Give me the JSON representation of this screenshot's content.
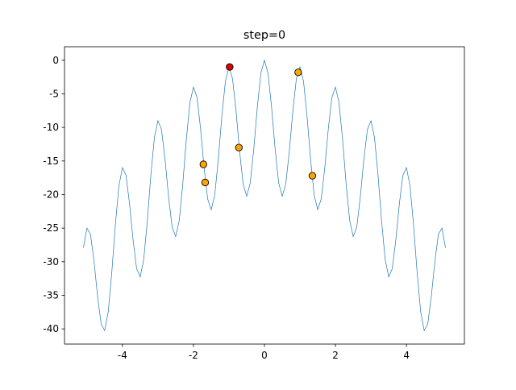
{
  "chart_data": {
    "type": "line",
    "title": "step=0",
    "xlim": [
      -5.632,
      5.632
    ],
    "ylim": [
      -42.26,
      2.01
    ],
    "xticks": [
      -4,
      -2,
      0,
      2,
      4
    ],
    "yticks": [
      0,
      -5,
      -10,
      -15,
      -20,
      -25,
      -30,
      -35,
      -40
    ],
    "series": [
      {
        "type": "line",
        "color": "#1f77b4",
        "x": [
          -5.1,
          -5,
          -4.9,
          -4.8,
          -4.7,
          -4.6,
          -4.5,
          -4.4,
          -4.3,
          -4.2,
          -4.1,
          -4,
          -3.9,
          -3.8,
          -3.7,
          -3.6,
          -3.5,
          -3.4,
          -3.3,
          -3.2,
          -3.1,
          -3,
          -2.9,
          -2.8,
          -2.7,
          -2.6,
          -2.5,
          -2.4,
          -2.3,
          -2.2,
          -2.1,
          -2,
          -1.9,
          -1.8,
          -1.7,
          -1.6,
          -1.5,
          -1.4,
          -1.3,
          -1.2,
          -1.1,
          -1,
          -0.9,
          -0.8,
          -0.7,
          -0.6,
          -0.5,
          -0.4,
          -0.3,
          -0.2,
          -0.1,
          0,
          0.1,
          0.2,
          0.3,
          0.4,
          0.5,
          0.6,
          0.7,
          0.8,
          0.9,
          1,
          1.1,
          1.2,
          1.3,
          1.4,
          1.5,
          1.6,
          1.7,
          1.8,
          1.9,
          2,
          2.1,
          2.2,
          2.3,
          2.4,
          2.5,
          2.6,
          2.7,
          2.8,
          2.9,
          3,
          3.1,
          3.2,
          3.3,
          3.4,
          3.5,
          3.6,
          3.7,
          3.8,
          3.9,
          4,
          4.1,
          4.2,
          4.3,
          4.4,
          4.5,
          4.6,
          4.7,
          4.8,
          4.9,
          5,
          5.1
        ],
        "values": [
          -27.92,
          -25,
          -25.92,
          -29.95,
          -35.18,
          -39.25,
          -40.25,
          -37.45,
          -31.58,
          -24.55,
          -18.72,
          -16,
          -17.12,
          -21.35,
          -26.78,
          -31.05,
          -32.25,
          -29.65,
          -23.98,
          -17.15,
          -11.52,
          -9,
          -10.32,
          -14.75,
          -20.38,
          -24.85,
          -26.25,
          -23.85,
          -18.38,
          -11.75,
          -6.32,
          -4,
          -5.52,
          -10.15,
          -15.98,
          -20.65,
          -22.25,
          -20.05,
          -14.78,
          -8.35,
          -3.12,
          -1,
          -2.72,
          -7.55,
          -13.58,
          -18.45,
          -20.25,
          -18.25,
          -13.18,
          -6.95,
          -1.92,
          0,
          -1.92,
          -6.95,
          -13.18,
          -18.25,
          -20.25,
          -18.45,
          -13.58,
          -7.55,
          -2.72,
          -1,
          -3.12,
          -8.35,
          -14.78,
          -20.05,
          -22.25,
          -20.65,
          -15.98,
          -10.15,
          -5.52,
          -4,
          -6.32,
          -11.75,
          -18.38,
          -23.85,
          -26.25,
          -24.85,
          -20.38,
          -14.75,
          -10.32,
          -9,
          -11.52,
          -17.15,
          -23.98,
          -29.65,
          -32.25,
          -31.05,
          -26.78,
          -21.35,
          -17.12,
          -16,
          -18.72,
          -24.55,
          -31.58,
          -37.45,
          -40.25,
          -39.25,
          -35.18,
          -29.95,
          -25.92,
          -25,
          -27.92
        ]
      },
      {
        "type": "scatter",
        "color": "#ffa500",
        "x": [
          -1.72,
          -1.67,
          -0.72,
          0.95,
          1.35
        ],
        "values": [
          -15.5,
          -18.2,
          -13.0,
          -1.8,
          -17.2
        ]
      },
      {
        "type": "scatter",
        "color": "#e00000",
        "x": [
          -0.98
        ],
        "values": [
          -1.0
        ]
      }
    ]
  }
}
